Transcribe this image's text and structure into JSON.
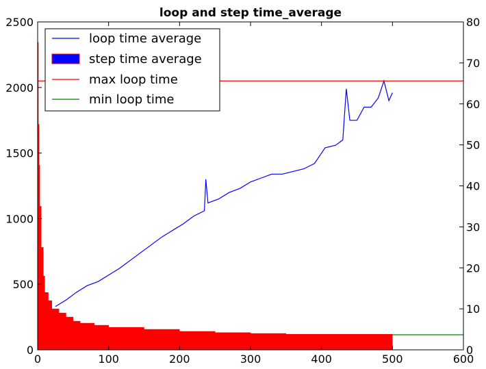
{
  "chart_data": {
    "type": "line",
    "title": "loop and step time_average",
    "xlabel": "",
    "ylabel": "",
    "xlim": [
      0,
      600
    ],
    "ylim_left": [
      0,
      2500
    ],
    "ylim_right": [
      0,
      80
    ],
    "x_ticks": [
      "0",
      "100",
      "200",
      "300",
      "400",
      "500",
      "600"
    ],
    "y_left_ticks": [
      "0",
      "500",
      "1000",
      "1500",
      "2000",
      "2500"
    ],
    "y_right_ticks": [
      "0",
      "10",
      "20",
      "30",
      "40",
      "50",
      "60",
      "70",
      "80"
    ],
    "grid": false,
    "legend_position": "top-left",
    "series": [
      {
        "name": "loop time average",
        "type": "line",
        "axis": "left",
        "color": "#0000ff",
        "x": [
          25,
          40,
          55,
          70,
          85,
          100,
          115,
          130,
          145,
          160,
          175,
          190,
          205,
          220,
          235,
          237,
          240,
          255,
          270,
          285,
          300,
          315,
          330,
          345,
          360,
          375,
          390,
          395,
          405,
          420,
          430,
          435,
          440,
          450,
          460,
          470,
          480,
          488,
          495,
          500
        ],
        "y": [
          330,
          380,
          440,
          490,
          520,
          570,
          620,
          680,
          740,
          800,
          860,
          910,
          960,
          1020,
          1060,
          1300,
          1120,
          1150,
          1200,
          1230,
          1280,
          1310,
          1340,
          1340,
          1360,
          1380,
          1420,
          1460,
          1540,
          1560,
          1600,
          1990,
          1750,
          1750,
          1850,
          1850,
          1920,
          2050,
          1900,
          1960
        ]
      },
      {
        "name": "step time average",
        "type": "bar",
        "axis": "right",
        "color": "#ff0000",
        "x": [
          1,
          2,
          3,
          5,
          8,
          10,
          15,
          20,
          30,
          40,
          50,
          60,
          80,
          100,
          150,
          200,
          250,
          300,
          350,
          400,
          450,
          500
        ],
        "y": [
          75,
          55,
          45,
          35,
          25,
          18,
          14,
          12,
          10,
          9,
          8,
          7,
          6.5,
          6,
          5.5,
          5,
          4.5,
          4.2,
          4,
          3.8,
          3.8,
          3.8
        ]
      },
      {
        "name": "max loop time",
        "type": "hline",
        "axis": "left",
        "color": "#ff0000",
        "value": 2050
      },
      {
        "name": "min loop time",
        "type": "hline",
        "axis": "left",
        "color": "#008000",
        "value": 115,
        "x_start": 500
      }
    ]
  }
}
